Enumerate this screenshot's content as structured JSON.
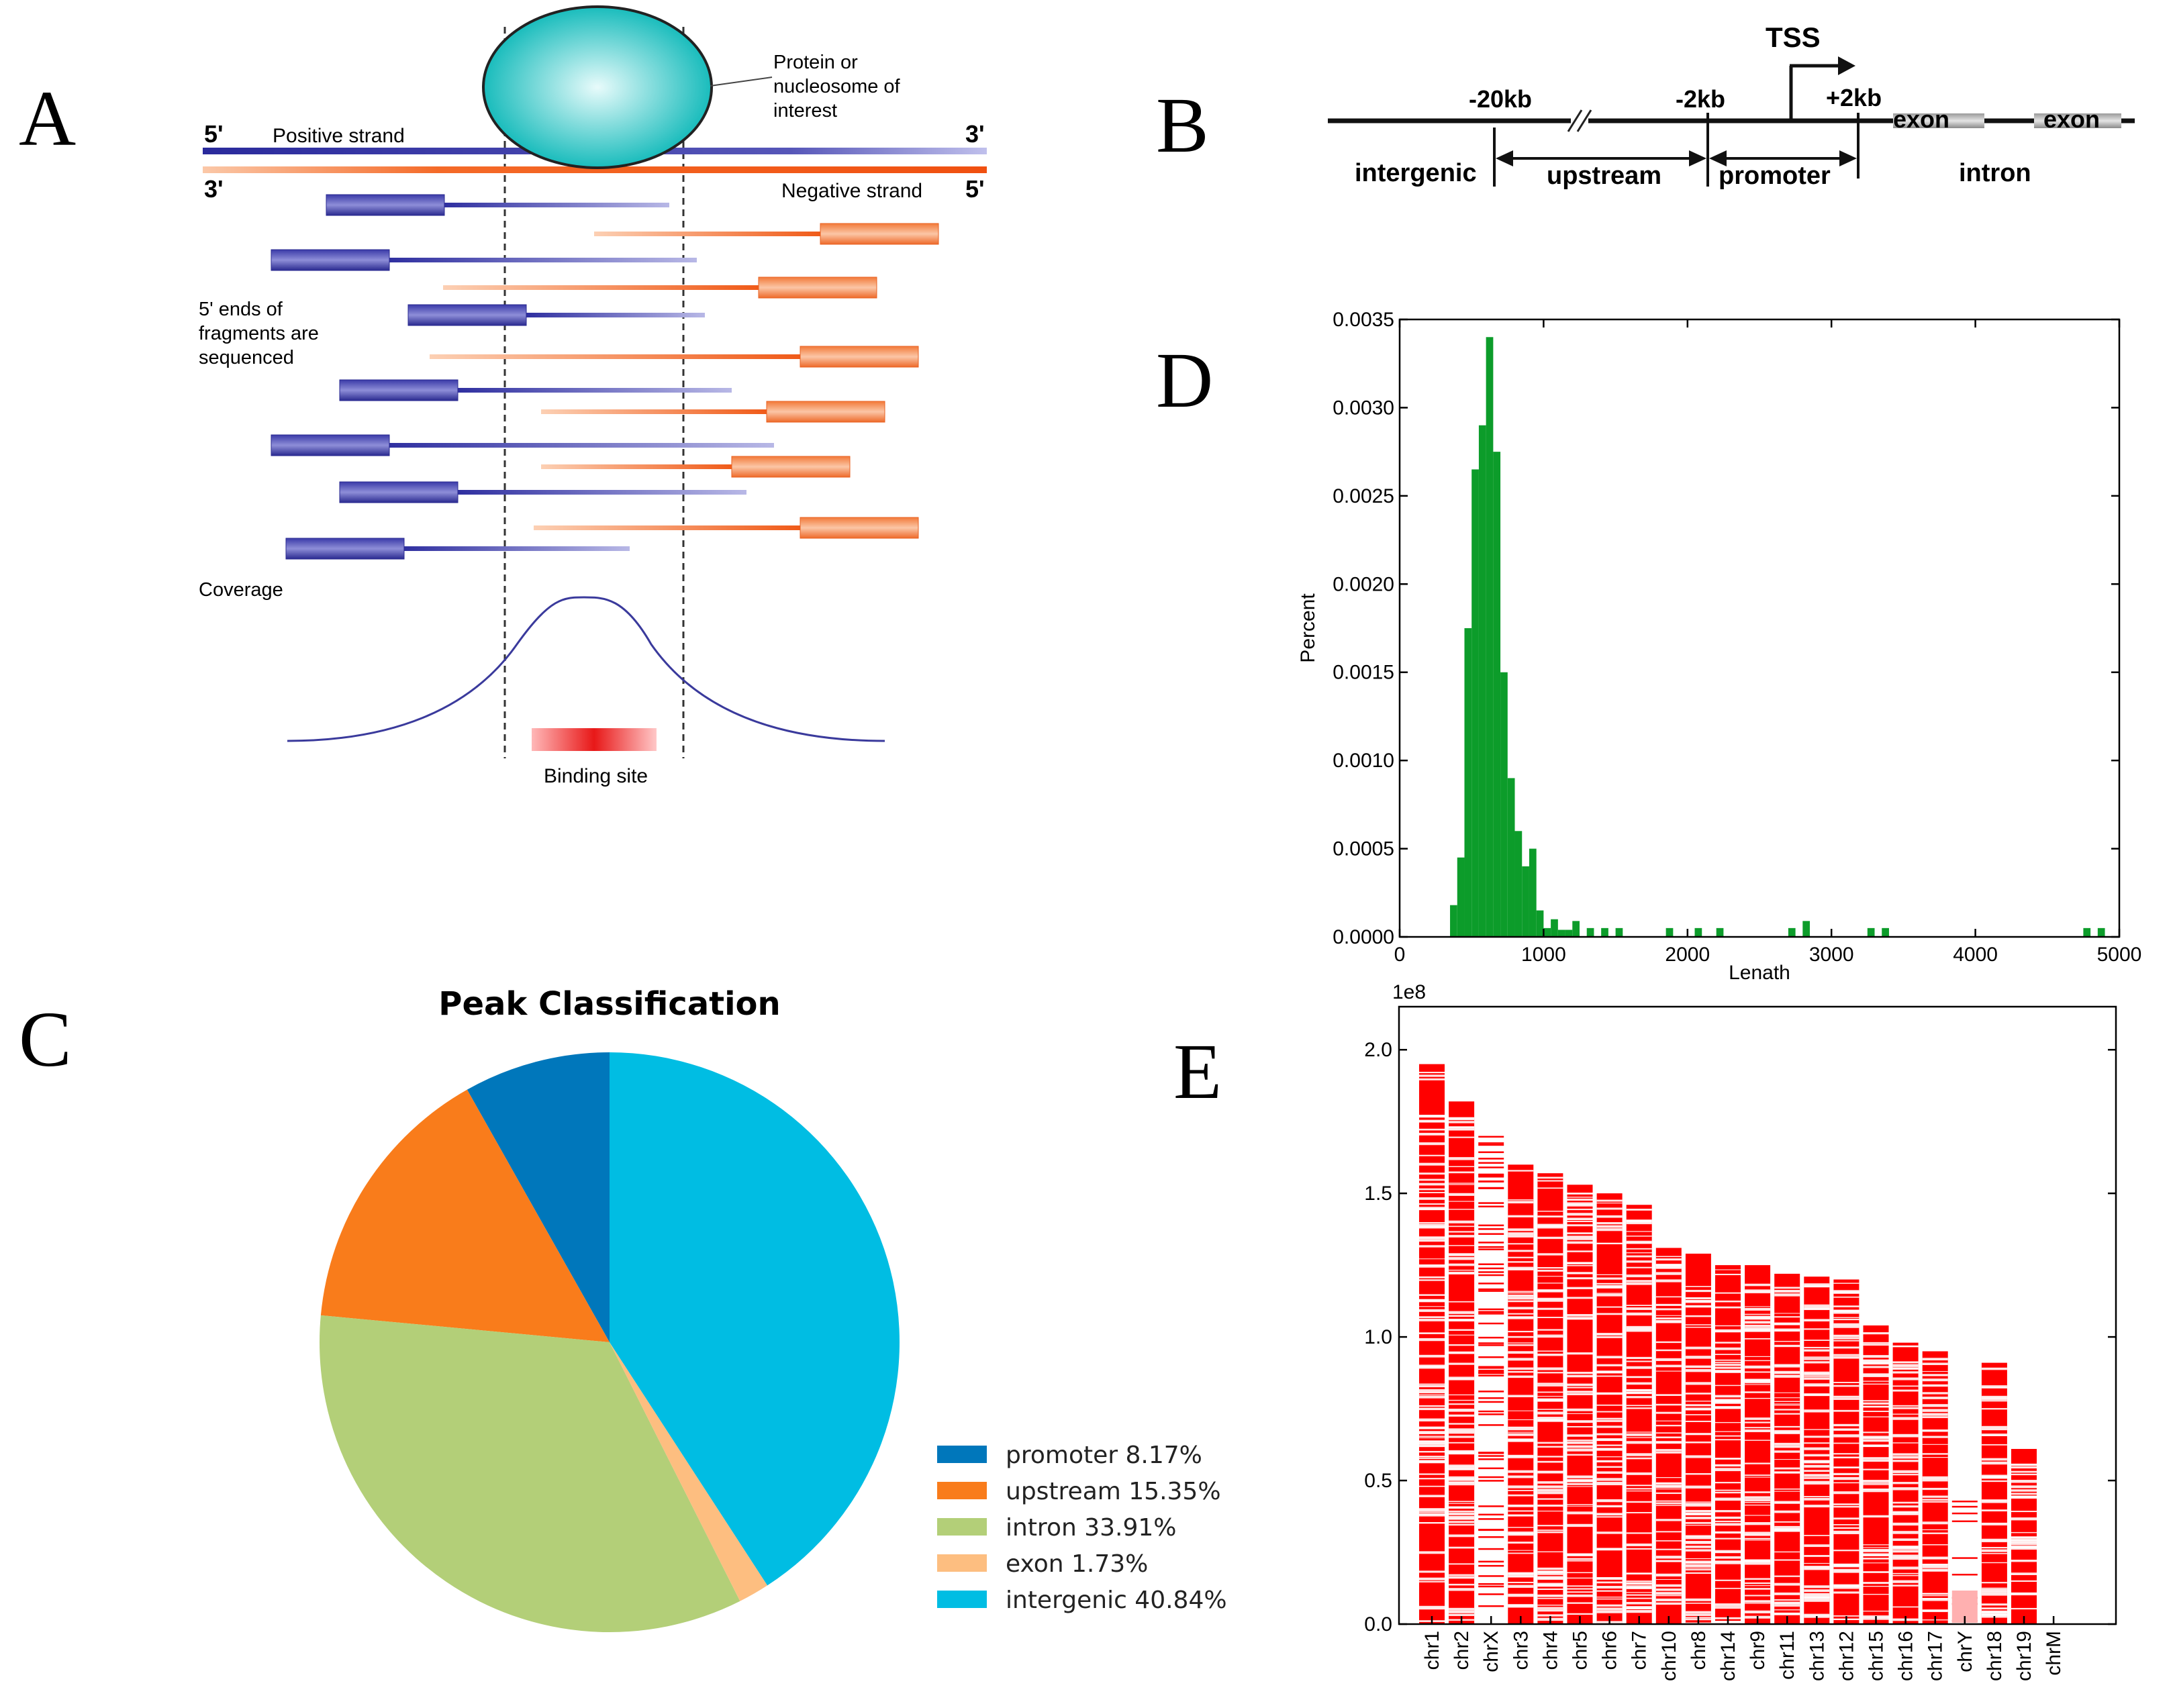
{
  "panels": {
    "a": "A",
    "b": "B",
    "c": "C",
    "d": "D",
    "e": "E"
  },
  "panel_a": {
    "five_prime": "5'",
    "three_prime": "3'",
    "positive_strand": "Positive strand",
    "negative_strand": "Negative strand",
    "protein_label_l1": "Protein or",
    "protein_label_l2": "nucleosome of",
    "protein_label_l3": "interest",
    "fragments_l1": "5' ends of",
    "fragments_l2": "fragments are",
    "fragments_l3": "sequenced",
    "coverage": "Coverage",
    "binding_site": "Binding site"
  },
  "panel_b": {
    "tss": "TSS",
    "m20kb": "-20kb",
    "m2kb": "-2kb",
    "p2kb": "+2kb",
    "exon1": "exon",
    "exon2": "exon",
    "intergenic": "intergenic",
    "upstream": "upstream",
    "promoter": "promoter",
    "intron": "intron"
  },
  "chart_data": [
    {
      "type": "pie",
      "title": "Peak Classification",
      "labels": [
        "promoter 8.17%",
        "upstream 15.35%",
        "intron 33.91%",
        "exon 1.73%",
        "intergenic 40.84%"
      ],
      "values": [
        8.17,
        15.35,
        33.91,
        1.73,
        40.84
      ],
      "colors": [
        "#0077bb",
        "#f97c1b",
        "#b3cf78",
        "#fdbe80",
        "#00bde3"
      ],
      "legend": "bottom-right"
    },
    {
      "type": "bar",
      "title": "",
      "xlabel": "Lenath",
      "ylabel": "Percent",
      "xlim": [
        0,
        5000
      ],
      "ylim": [
        0,
        0.0035
      ],
      "xticks": [
        "0",
        "1000",
        "2000",
        "3000",
        "4000",
        "5000"
      ],
      "yticks": [
        "0.0000",
        "0.0005",
        "0.0010",
        "0.0015",
        "0.0020",
        "0.0025",
        "0.0030",
        "0.0035"
      ],
      "bin_width": 50,
      "color": "#0c9c2a",
      "bins": [
        [
          350,
          0.00018
        ],
        [
          400,
          0.00045
        ],
        [
          450,
          0.00175
        ],
        [
          500,
          0.00265
        ],
        [
          550,
          0.0029
        ],
        [
          600,
          0.0034
        ],
        [
          650,
          0.00275
        ],
        [
          700,
          0.0015
        ],
        [
          750,
          0.0009
        ],
        [
          800,
          0.0006
        ],
        [
          850,
          0.0004
        ],
        [
          900,
          0.0005
        ],
        [
          950,
          0.00015
        ],
        [
          1000,
          5e-05
        ],
        [
          1050,
          0.0001
        ],
        [
          1100,
          4e-05
        ],
        [
          1150,
          4e-05
        ],
        [
          1200,
          9e-05
        ],
        [
          1300,
          5e-05
        ],
        [
          1400,
          5e-05
        ],
        [
          1500,
          5e-05
        ],
        [
          1850,
          5e-05
        ],
        [
          2050,
          5e-05
        ],
        [
          2200,
          5e-05
        ],
        [
          2700,
          5e-05
        ],
        [
          2800,
          9e-05
        ],
        [
          3250,
          5e-05
        ],
        [
          3350,
          5e-05
        ],
        [
          4750,
          5e-05
        ],
        [
          4850,
          5e-05
        ]
      ]
    },
    {
      "type": "bar",
      "title": "",
      "offset_label": "1e8",
      "ylim": [
        0,
        2.15
      ],
      "yticks": [
        "0.0",
        "0.5",
        "1.0",
        "1.5",
        "2.0"
      ],
      "categories": [
        "chr1",
        "chr2",
        "chrX",
        "chr3",
        "chr4",
        "chr5",
        "chr6",
        "chr7",
        "chr10",
        "chr8",
        "chr14",
        "chr9",
        "chr11",
        "chr13",
        "chr12",
        "chr15",
        "chr16",
        "chr17",
        "chrY",
        "chr18",
        "chr19",
        "chrM"
      ],
      "values": [
        1.95,
        1.82,
        1.7,
        1.6,
        1.57,
        1.53,
        1.5,
        1.46,
        1.31,
        1.29,
        1.25,
        1.25,
        1.22,
        1.21,
        1.2,
        1.04,
        0.98,
        0.95,
        0.43,
        0.91,
        0.61,
        0.0002
      ],
      "color": "#ff0000"
    }
  ]
}
